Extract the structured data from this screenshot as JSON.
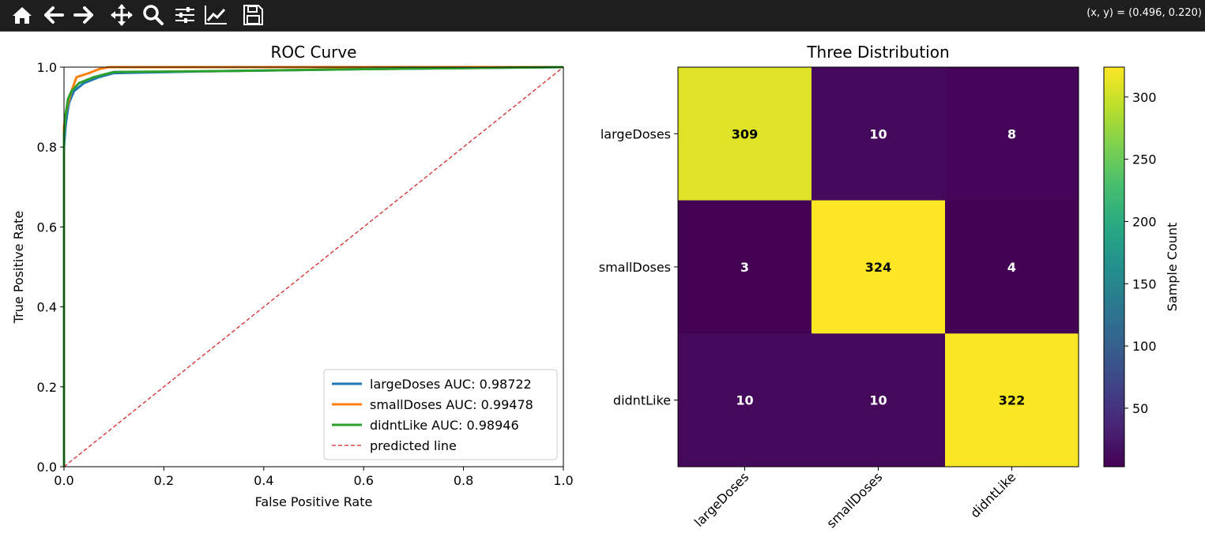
{
  "toolbar": {
    "tools": [
      {
        "name": "home-icon",
        "label": "Home"
      },
      {
        "name": "back-icon",
        "label": "Back"
      },
      {
        "name": "forward-icon",
        "label": "Forward"
      },
      {
        "name": "pan-icon",
        "label": "Pan"
      },
      {
        "name": "zoom-icon",
        "label": "Zoom"
      },
      {
        "name": "subplots-icon",
        "label": "Configure subplots"
      },
      {
        "name": "edit-lines-icon",
        "label": "Edit axis"
      },
      {
        "name": "save-icon",
        "label": "Save"
      }
    ],
    "coords": "(x, y) = (0.496, 0.220)"
  },
  "chart_data": [
    {
      "type": "line",
      "title": "ROC Curve",
      "xlabel": "False Positive Rate",
      "ylabel": "True Positive Rate",
      "xlim": [
        0.0,
        1.0
      ],
      "ylim": [
        0.0,
        1.0
      ],
      "xticks": [
        "0.0",
        "0.2",
        "0.4",
        "0.6",
        "0.8",
        "1.0"
      ],
      "yticks": [
        "0.0",
        "0.2",
        "0.4",
        "0.6",
        "0.8",
        "1.0"
      ],
      "grid": false,
      "legend_position": "bottom-right",
      "series": [
        {
          "name": "largeDoses AUC: 0.98722",
          "color": "#1f77b4",
          "x": [
            0,
            0,
            0.003,
            0.006,
            0.01,
            0.02,
            0.04,
            0.07,
            0.1,
            0.3,
            0.6,
            1.0
          ],
          "y": [
            0,
            0.8,
            0.85,
            0.88,
            0.91,
            0.94,
            0.96,
            0.975,
            0.985,
            0.99,
            0.995,
            1.0
          ]
        },
        {
          "name": "smallDoses AUC: 0.99478",
          "color": "#ff7f0e",
          "x": [
            0,
            0,
            0.003,
            0.008,
            0.015,
            0.025,
            0.05,
            0.07,
            0.09,
            0.2,
            1.0
          ],
          "y": [
            0,
            0.85,
            0.88,
            0.91,
            0.94,
            0.975,
            0.985,
            0.995,
            1.0,
            1.0,
            1.0
          ]
        },
        {
          "name": "didntLike AUC: 0.98946",
          "color": "#2ca02c",
          "x": [
            0,
            0,
            0.003,
            0.008,
            0.015,
            0.03,
            0.06,
            0.1,
            0.3,
            0.6,
            1.0
          ],
          "y": [
            0,
            0.83,
            0.88,
            0.92,
            0.94,
            0.96,
            0.975,
            0.988,
            0.99,
            0.995,
            1.0
          ]
        },
        {
          "name": "predicted line",
          "color": "#d62728",
          "dashed": true,
          "x": [
            0,
            1
          ],
          "y": [
            0,
            1
          ]
        }
      ]
    },
    {
      "type": "heatmap",
      "title": "Three Distribution",
      "rows": [
        "largeDoses",
        "smallDoses",
        "didntLike"
      ],
      "cols": [
        "largeDoses",
        "smallDoses",
        "didntLike"
      ],
      "values": [
        [
          309,
          10,
          8
        ],
        [
          3,
          324,
          4
        ],
        [
          10,
          10,
          322
        ]
      ],
      "colormap": "viridis",
      "colorbar_label": "Sample Count",
      "colorbar_range": [
        3,
        324
      ],
      "colorbar_ticks": [
        "50",
        "100",
        "150",
        "200",
        "250",
        "300"
      ]
    }
  ]
}
